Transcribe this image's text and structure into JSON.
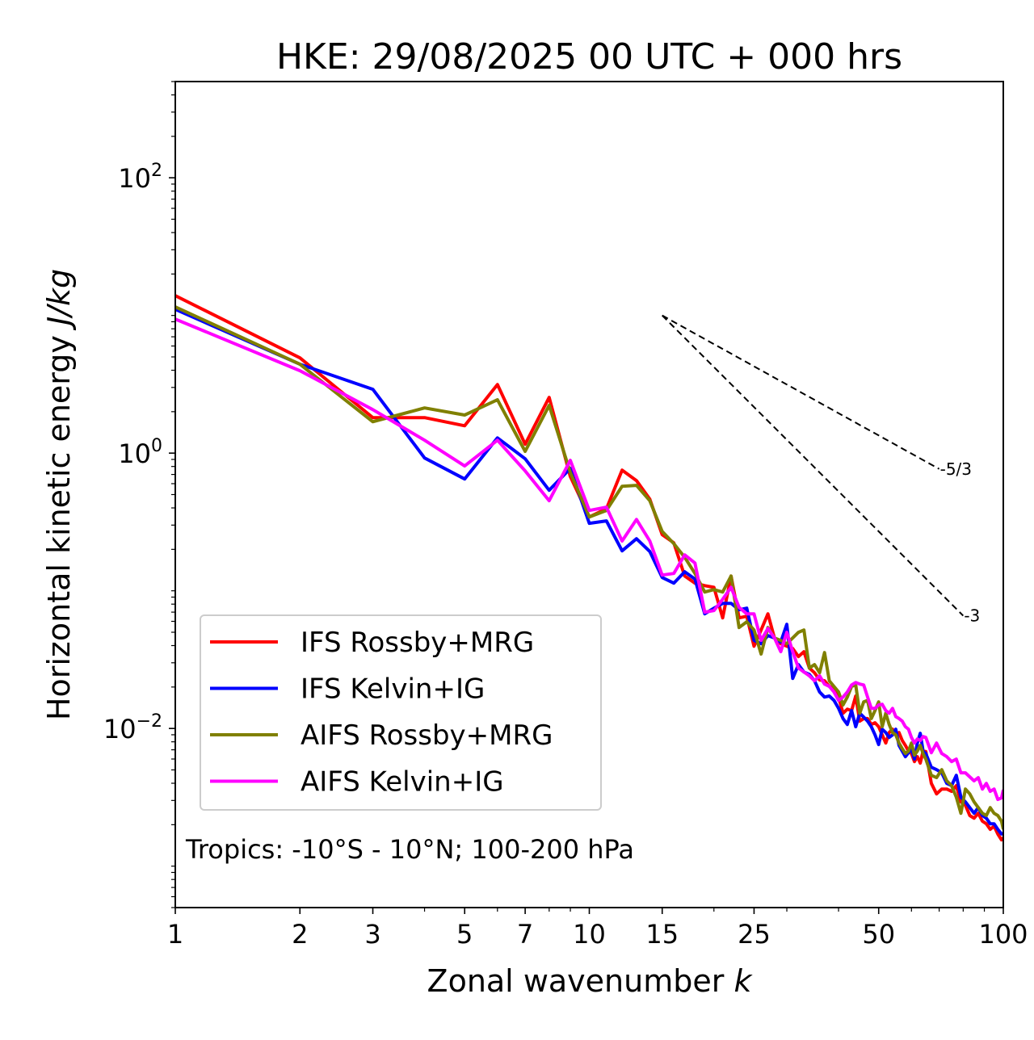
{
  "chart_data": {
    "type": "line",
    "title": "HKE: 29/08/2025 00 UTC + 000 hrs",
    "xlabel": "Zonal wavenumber",
    "xlabel_italic": "k",
    "ylabel": "Horizontal kinetic energy",
    "ylabel_italic": "J/kg",
    "xscale": "log",
    "yscale": "log",
    "xlim": [
      1,
      100
    ],
    "ylim": [
      0.0005,
      500
    ],
    "grid": false,
    "x_ticks": [
      1,
      2,
      3,
      5,
      7,
      10,
      15,
      25,
      50,
      100
    ],
    "x_tick_labels": [
      "1",
      "2",
      "3",
      "5",
      "7",
      "10",
      "15",
      "25",
      "50",
      "100"
    ],
    "x_minor_ticks": [
      4,
      6,
      8,
      9,
      20,
      30,
      40,
      60,
      70,
      80,
      90
    ],
    "y_ticks": [
      {
        "value": 100,
        "base": "10",
        "exp": "2"
      },
      {
        "value": 1,
        "base": "10",
        "exp": "0"
      },
      {
        "value": 0.01,
        "base": "10",
        "exp": "−2"
      }
    ],
    "legend_position": "lower-left",
    "annotation": "Tropics: -10°S - 10°N; 100-200 hPa",
    "reference_lines": [
      {
        "label": "-5/3",
        "slope": -1.6667,
        "x_start": 15,
        "x_end": 70,
        "y_start": 10
      },
      {
        "label": "-3",
        "slope": -3,
        "x_start": 15,
        "x_end": 80,
        "y_start": 10
      }
    ],
    "x": [
      1,
      2,
      3,
      4,
      5,
      6,
      7,
      8,
      9,
      10,
      11,
      12,
      13,
      14,
      15,
      16,
      17,
      18,
      19,
      20,
      21,
      22,
      23,
      24,
      25,
      26,
      27,
      28,
      29,
      30,
      31,
      32,
      33,
      34,
      35,
      36,
      37,
      38,
      39,
      40,
      41,
      42,
      43,
      44,
      45,
      46,
      47,
      48,
      49,
      50,
      51,
      52,
      53,
      54,
      55,
      56,
      57,
      58,
      59,
      60,
      61,
      62,
      63,
      64,
      65,
      67,
      69,
      71,
      73,
      75,
      77,
      79,
      81,
      83,
      85,
      87,
      89,
      91,
      93,
      95,
      97,
      99,
      100
    ],
    "series": [
      {
        "name": "IFS Rossby+MRG",
        "color": "#ff0000",
        "values": [
          13.92,
          4.92,
          1.81,
          1.81,
          1.58,
          3.15,
          1.16,
          2.54,
          0.676,
          0.344,
          0.394,
          0.753,
          0.632,
          0.463,
          0.256,
          0.223,
          0.128,
          0.1137,
          0.109,
          0.106,
          0.0636,
          0.128,
          0.0636,
          0.0653,
          0.0396,
          0.0519,
          0.068,
          0.0454,
          0.0413,
          0.0396,
          0.0381,
          0.0333,
          0.0361,
          0.0275,
          0.0254,
          0.0225,
          0.0222,
          0.0202,
          0.0197,
          0.0169,
          0.0129,
          0.0138,
          0.0135,
          0.0172,
          0.0113,
          0.0118,
          0.0118,
          0.0107,
          0.011,
          0.0103,
          0.00898,
          0.00784,
          0.00935,
          0.00987,
          0.00898,
          0.00935,
          0.00817,
          0.00753,
          0.00685,
          0.00658,
          0.00575,
          0.00624,
          0.0056,
          0.00685,
          0.0068,
          0.00399,
          0.00335,
          0.00363,
          0.00363,
          0.00349,
          0.00384,
          0.00293,
          0.00277,
          0.00233,
          0.00223,
          0.00242,
          0.00212,
          0.00203,
          0.00185,
          0.00195,
          0.00171,
          0.00155,
          0.00161
        ]
      },
      {
        "name": "IFS Kelvin+IG",
        "color": "#0000ff",
        "values": [
          11.07,
          4.42,
          2.91,
          0.922,
          0.649,
          1.29,
          0.91,
          0.537,
          0.774,
          0.309,
          0.322,
          0.195,
          0.239,
          0.193,
          0.125,
          0.1137,
          0.1374,
          0.1217,
          0.068,
          0.0748,
          0.0811,
          0.0811,
          0.0728,
          0.0748,
          0.0436,
          0.0413,
          0.0473,
          0.0454,
          0.0424,
          0.0571,
          0.0231,
          0.0291,
          0.0257,
          0.0247,
          0.0222,
          0.0184,
          0.0169,
          0.0172,
          0.016,
          0.014,
          0.0118,
          0.0107,
          0.0135,
          0.0103,
          0.0129,
          0.0121,
          0.0113,
          0.0103,
          0.00898,
          0.00764,
          0.00987,
          0.00935,
          0.00861,
          0.00898,
          0.00987,
          0.00753,
          0.00685,
          0.00624,
          0.00667,
          0.00713,
          0.00599,
          0.00784,
          0.00922,
          0.00685,
          0.00658,
          0.00523,
          0.00502,
          0.00476,
          0.00399,
          0.00384,
          0.00457,
          0.00317,
          0.00293,
          0.00266,
          0.00242,
          0.00266,
          0.00233,
          0.00223,
          0.00203,
          0.00203,
          0.00185,
          0.00171,
          0.00173
        ]
      },
      {
        "name": "AIFS Rossby+MRG",
        "color": "#808000",
        "values": [
          11.53,
          4.42,
          1.69,
          2.13,
          1.89,
          2.44,
          1.03,
          2.22,
          0.723,
          0.344,
          0.383,
          0.575,
          0.583,
          0.451,
          0.27,
          0.22,
          0.175,
          0.1337,
          0.098,
          0.102,
          0.098,
          0.128,
          0.0541,
          0.0595,
          0.0519,
          0.0347,
          0.0541,
          0.0454,
          0.0436,
          0.0413,
          0.0454,
          0.0499,
          0.0519,
          0.0275,
          0.0291,
          0.0254,
          0.0356,
          0.0222,
          0.0202,
          0.0184,
          0.0148,
          0.0169,
          0.0202,
          0.0207,
          0.0129,
          0.0156,
          0.016,
          0.0118,
          0.0135,
          0.0156,
          0.0103,
          0.0129,
          0.0107,
          0.00935,
          0.00898,
          0.00784,
          0.00713,
          0.00658,
          0.00685,
          0.00784,
          0.0064,
          0.00685,
          0.00753,
          0.00658,
          0.00599,
          0.00457,
          0.00439,
          0.00502,
          0.00416,
          0.00384,
          0.00317,
          0.00242,
          0.00363,
          0.00335,
          0.00293,
          0.00266,
          0.00242,
          0.00233,
          0.00266,
          0.00242,
          0.00233,
          0.00212,
          0.00185
        ]
      },
      {
        "name": "AIFS Kelvin+IG",
        "color": "#ff00ff",
        "values": [
          9.41,
          3.97,
          2.07,
          1.24,
          0.806,
          1.24,
          0.743,
          0.451,
          0.886,
          0.383,
          0.405,
          0.23,
          0.33,
          0.23,
          0.13,
          0.1337,
          0.1824,
          0.159,
          0.07,
          0.0718,
          0.0868,
          0.106,
          0.0759,
          0.068,
          0.068,
          0.0436,
          0.0533,
          0.0454,
          0.0361,
          0.0499,
          0.0361,
          0.0275,
          0.0257,
          0.0241,
          0.0222,
          0.0241,
          0.021,
          0.0202,
          0.0184,
          0.016,
          0.0169,
          0.0184,
          0.0207,
          0.0216,
          0.021,
          0.0207,
          0.0169,
          0.014,
          0.014,
          0.0148,
          0.015,
          0.0135,
          0.0129,
          0.014,
          0.0122,
          0.0118,
          0.0113,
          0.0103,
          0.00987,
          0.00861,
          0.00784,
          0.00839,
          0.00817,
          0.00874,
          0.00861,
          0.00667,
          0.00784,
          0.00658,
          0.00624,
          0.00575,
          0.00599,
          0.00476,
          0.00476,
          0.00445,
          0.00416,
          0.00439,
          0.00363,
          0.00399,
          0.00349,
          0.00363,
          0.00305,
          0.00313,
          0.00358
        ]
      }
    ]
  }
}
